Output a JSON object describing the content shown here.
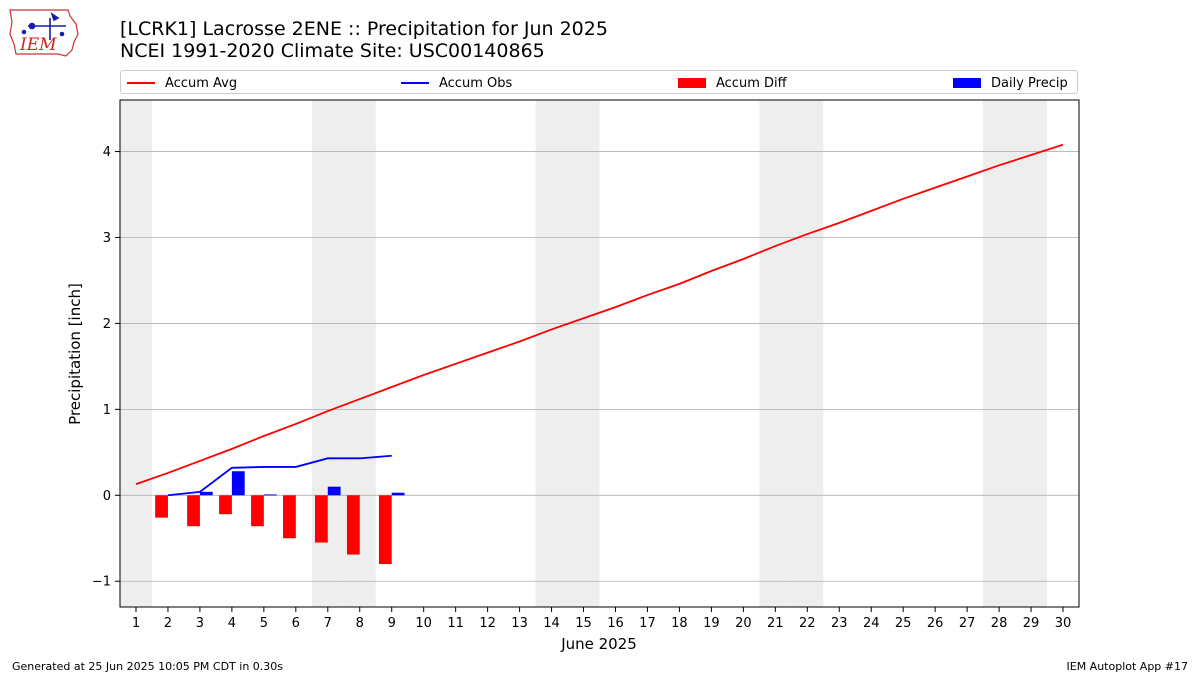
{
  "header": {
    "title_line1": "[LCRK1] Lacrosse 2ENE :: Precipitation for Jun 2025",
    "title_line2": "NCEI 1991-2020 Climate Site: USC00140865",
    "logo_text": "IEM"
  },
  "footer": {
    "generated": "Generated at 25 Jun 2025 10:05 PM CDT in 0.30s",
    "app": "IEM Autoplot App #17"
  },
  "colors": {
    "accum_avg": "#ff0000",
    "accum_obs": "#0000ff",
    "accum_diff": "#ff0000",
    "daily_precip": "#0000ff",
    "weekend_shade": "#eeeeee",
    "grid": "#b0b0b0"
  },
  "chart_data": {
    "type": "bar",
    "xlabel": "June 2025",
    "ylabel": "Precipitation [inch]",
    "xlim": [
      0.5,
      30.5
    ],
    "ylim": [
      -1.3,
      4.6
    ],
    "yticks": [
      -1,
      0,
      1,
      2,
      3,
      4
    ],
    "ytick_labels": [
      "−1",
      "0",
      "1",
      "2",
      "3",
      "4"
    ],
    "grid": "horizontal",
    "legend_position": "top",
    "x": [
      1,
      2,
      3,
      4,
      5,
      6,
      7,
      8,
      9,
      10,
      11,
      12,
      13,
      14,
      15,
      16,
      17,
      18,
      19,
      20,
      21,
      22,
      23,
      24,
      25,
      26,
      27,
      28,
      29,
      30
    ],
    "weekend_days": [
      1,
      7,
      8,
      14,
      15,
      21,
      22,
      28,
      29
    ],
    "series": [
      {
        "name": "Accum Avg",
        "kind": "line",
        "values": [
          0.13,
          0.26,
          0.4,
          0.54,
          0.69,
          0.83,
          0.98,
          1.12,
          1.26,
          1.4,
          1.53,
          1.66,
          1.79,
          1.93,
          2.06,
          2.19,
          2.33,
          2.46,
          2.61,
          2.75,
          2.9,
          3.04,
          3.17,
          3.31,
          3.45,
          3.58,
          3.71,
          3.84,
          3.96,
          4.08
        ]
      },
      {
        "name": "Accum Obs",
        "kind": "line",
        "x": [
          2,
          3,
          4,
          5,
          6,
          7,
          8,
          9
        ],
        "values": [
          0.0,
          0.04,
          0.32,
          0.33,
          0.33,
          0.43,
          0.43,
          0.46
        ]
      },
      {
        "name": "Accum Diff",
        "kind": "bar",
        "x": [
          2,
          3,
          4,
          5,
          6,
          7,
          8,
          9
        ],
        "values": [
          -0.26,
          -0.36,
          -0.22,
          -0.36,
          -0.5,
          -0.55,
          -0.69,
          -0.8
        ]
      },
      {
        "name": "Daily Precip",
        "kind": "bar",
        "x": [
          2,
          3,
          4,
          5,
          6,
          7,
          8,
          9
        ],
        "values": [
          0.0,
          0.04,
          0.28,
          0.01,
          0.0,
          0.1,
          0.0,
          0.03
        ]
      }
    ]
  }
}
